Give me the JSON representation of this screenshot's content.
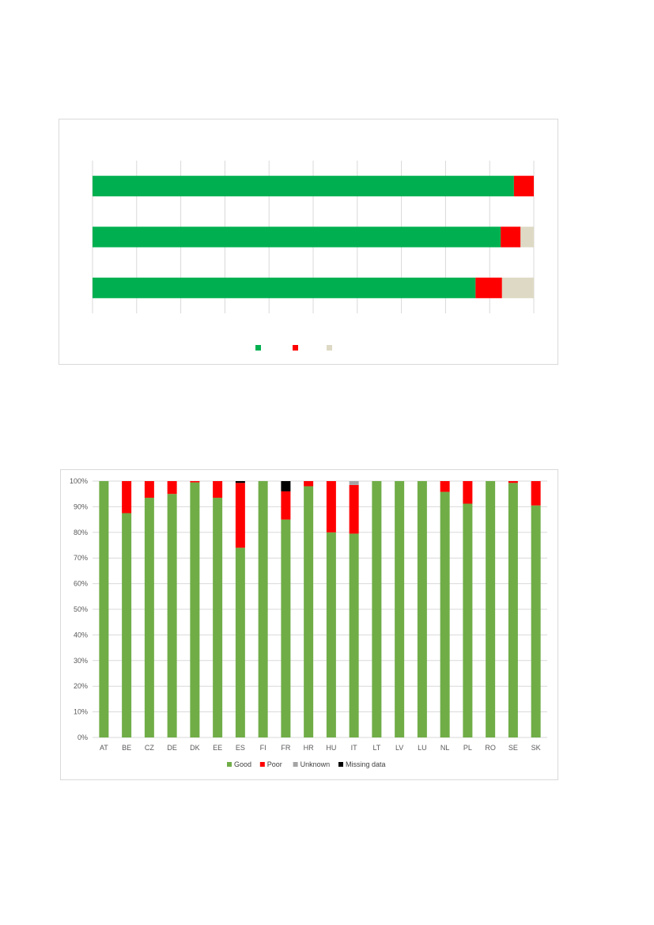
{
  "chart_data": [
    {
      "type": "bar",
      "orientation": "horizontal",
      "stacked": true,
      "categories": [
        "",
        "",
        ""
      ],
      "series": [
        {
          "values": [
            95.5,
            92.5,
            86.8
          ],
          "color": "#00b050"
        },
        {
          "values": [
            4.5,
            4.5,
            6.0
          ],
          "color": "#ff0000"
        },
        {
          "values": [
            0,
            3.0,
            7.2
          ],
          "color": "#ddd9c4"
        }
      ],
      "xlim": [
        0,
        100
      ],
      "grid": true,
      "legend": "bottom"
    },
    {
      "type": "bar",
      "stacked": true,
      "categories": [
        "AT",
        "BE",
        "CZ",
        "DE",
        "DK",
        "EE",
        "ES",
        "FI",
        "FR",
        "HR",
        "HU",
        "IT",
        "LT",
        "LV",
        "LU",
        "NL",
        "PL",
        "RO",
        "SE",
        "SK"
      ],
      "series": [
        {
          "name": "Good",
          "color": "#70ad47",
          "values": [
            100,
            87.5,
            93.5,
            95,
            99.5,
            93.5,
            74,
            100,
            85,
            98,
            80,
            79.5,
            100,
            100,
            100,
            95.8,
            91.2,
            100,
            99.3,
            90.5
          ]
        },
        {
          "name": "Poor",
          "color": "#ff0000",
          "values": [
            0,
            12.5,
            6.5,
            5,
            0.5,
            6.5,
            25.3,
            0,
            11,
            2,
            20,
            19,
            0,
            0,
            0,
            4.2,
            8.8,
            0,
            0.7,
            9.5
          ]
        },
        {
          "name": "Unknown",
          "color": "#a5a5a5",
          "values": [
            0,
            0,
            0,
            0,
            0,
            0,
            0,
            0,
            0,
            0,
            0,
            1.5,
            0,
            0,
            0,
            0,
            0,
            0,
            0,
            0
          ]
        },
        {
          "name": "Missing data",
          "color": "#000000",
          "values": [
            0,
            0,
            0,
            0,
            0,
            0,
            0.7,
            0,
            4,
            0,
            0,
            0,
            0,
            0,
            0,
            0,
            0,
            0,
            0,
            0
          ]
        }
      ],
      "ylim": [
        0,
        100
      ],
      "yticks": [
        "0%",
        "10%",
        "20%",
        "30%",
        "40%",
        "50%",
        "60%",
        "70%",
        "80%",
        "90%",
        "100%"
      ],
      "grid": true,
      "legend": "bottom"
    }
  ]
}
